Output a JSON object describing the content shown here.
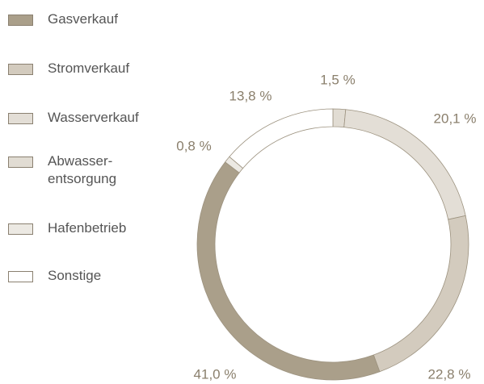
{
  "chart_data": {
    "type": "donut",
    "series": [
      {
        "name": "Abwasser-\nentsorgung",
        "color": "#e1dcd3",
        "values": [
          1.5
        ],
        "value_labels": [
          "1,5 %"
        ]
      },
      {
        "name": "Wasserverkauf",
        "color": "#e3ded6",
        "values": [
          20.1
        ],
        "value_labels": [
          "20,1 %"
        ]
      },
      {
        "name": "Stromverkauf",
        "color": "#d3cbbe",
        "values": [
          22.8
        ],
        "value_labels": [
          "22,8 %"
        ]
      },
      {
        "name": "Gasverkauf",
        "color": "#aa9f8a",
        "values": [
          41.0
        ],
        "value_labels": [
          "41,0 %"
        ]
      },
      {
        "name": "Hafenbetrieb",
        "color": "#ece9e3",
        "values": [
          0.8
        ],
        "value_labels": [
          "0,8 %"
        ]
      },
      {
        "name": "Sonstige",
        "color": "#ffffff",
        "values": [
          13.8
        ],
        "value_labels": [
          "13,8 %"
        ]
      }
    ],
    "legend_order": [
      3,
      2,
      1,
      0,
      4,
      5
    ]
  }
}
